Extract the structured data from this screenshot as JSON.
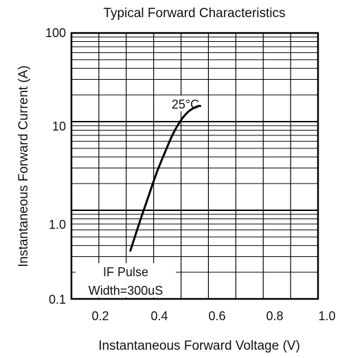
{
  "chart_data": {
    "type": "line",
    "title": "Typical Forward Characteristics",
    "xlabel": "Instantaneous Forward Voltage (V)",
    "ylabel": "Instantaneous Forward Current (A)",
    "x_scale": "linear",
    "y_scale": "log",
    "xlim": [
      0.1,
      1.0
    ],
    "ylim": [
      0.1,
      100
    ],
    "x_ticks": [
      "0.2",
      "0.4",
      "0.6",
      "0.8",
      "1.0"
    ],
    "y_ticks": [
      "0.1",
      "1.0",
      "10",
      "100"
    ],
    "grid": true,
    "series": [
      {
        "name": "25°C",
        "x": [
          0.315,
          0.35,
          0.38,
          0.41,
          0.44,
          0.47,
          0.5,
          0.53,
          0.56,
          0.57
        ],
        "y": [
          0.35,
          0.75,
          1.4,
          2.6,
          4.4,
          7.2,
          10.4,
          13.2,
          14.9,
          15.0
        ]
      }
    ],
    "annotations": [
      "IF Pulse",
      "Width=300uS"
    ]
  },
  "colors": {
    "line": "#000000",
    "grid": "#000000",
    "text": "#111111"
  }
}
